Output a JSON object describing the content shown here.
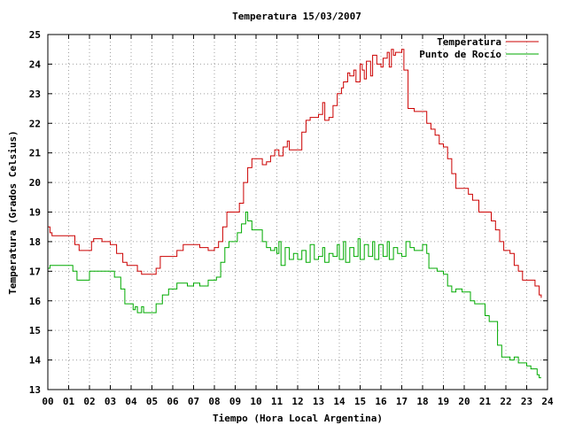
{
  "chart_data": {
    "type": "line",
    "title": "Temperatura 15/03/2007",
    "xlabel": "Tiempo (Hora Local Argentina)",
    "ylabel": "Temperatura (Grados Celsius)",
    "xlim": [
      0,
      24
    ],
    "ylim": [
      13,
      25
    ],
    "x_ticks": [
      "00",
      "01",
      "02",
      "03",
      "04",
      "05",
      "06",
      "07",
      "08",
      "09",
      "10",
      "11",
      "12",
      "13",
      "14",
      "15",
      "16",
      "17",
      "18",
      "19",
      "20",
      "21",
      "22",
      "23",
      "24"
    ],
    "y_ticks": [
      "13",
      "14",
      "15",
      "16",
      "17",
      "18",
      "19",
      "20",
      "21",
      "22",
      "23",
      "24",
      "25"
    ],
    "grid": true,
    "legend_position": "top-right",
    "series": [
      {
        "name": "Temperatura",
        "color": "#cc0000",
        "points": [
          [
            0.0,
            18.5
          ],
          [
            0.1,
            18.3
          ],
          [
            0.2,
            18.2
          ],
          [
            1.2,
            18.2
          ],
          [
            1.3,
            17.9
          ],
          [
            1.5,
            17.7
          ],
          [
            2.0,
            17.7
          ],
          [
            2.1,
            18.0
          ],
          [
            2.2,
            18.1
          ],
          [
            2.6,
            18.0
          ],
          [
            3.0,
            17.9
          ],
          [
            3.3,
            17.6
          ],
          [
            3.6,
            17.3
          ],
          [
            3.8,
            17.2
          ],
          [
            4.2,
            17.2
          ],
          [
            4.3,
            17.0
          ],
          [
            4.5,
            16.9
          ],
          [
            5.0,
            16.9
          ],
          [
            5.2,
            17.1
          ],
          [
            5.4,
            17.5
          ],
          [
            6.0,
            17.5
          ],
          [
            6.2,
            17.7
          ],
          [
            6.5,
            17.9
          ],
          [
            7.1,
            17.9
          ],
          [
            7.3,
            17.8
          ],
          [
            7.6,
            17.8
          ],
          [
            7.7,
            17.7
          ],
          [
            8.0,
            17.8
          ],
          [
            8.2,
            18.0
          ],
          [
            8.4,
            18.5
          ],
          [
            8.6,
            19.0
          ],
          [
            9.0,
            19.0
          ],
          [
            9.2,
            19.3
          ],
          [
            9.4,
            20.0
          ],
          [
            9.6,
            20.5
          ],
          [
            9.8,
            20.8
          ],
          [
            10.2,
            20.8
          ],
          [
            10.3,
            20.6
          ],
          [
            10.5,
            20.7
          ],
          [
            10.7,
            20.9
          ],
          [
            10.9,
            21.1
          ],
          [
            11.1,
            20.9
          ],
          [
            11.3,
            21.2
          ],
          [
            11.5,
            21.4
          ],
          [
            11.6,
            21.1
          ],
          [
            12.0,
            21.1
          ],
          [
            12.2,
            21.7
          ],
          [
            12.4,
            22.1
          ],
          [
            12.6,
            22.2
          ],
          [
            13.0,
            22.3
          ],
          [
            13.2,
            22.7
          ],
          [
            13.3,
            22.1
          ],
          [
            13.5,
            22.2
          ],
          [
            13.7,
            22.6
          ],
          [
            13.9,
            23.0
          ],
          [
            14.1,
            23.2
          ],
          [
            14.2,
            23.4
          ],
          [
            14.4,
            23.7
          ],
          [
            14.5,
            23.6
          ],
          [
            14.7,
            23.8
          ],
          [
            14.8,
            23.4
          ],
          [
            15.0,
            24.0
          ],
          [
            15.1,
            23.8
          ],
          [
            15.2,
            23.5
          ],
          [
            15.3,
            24.1
          ],
          [
            15.5,
            23.6
          ],
          [
            15.6,
            24.3
          ],
          [
            15.8,
            24.0
          ],
          [
            16.0,
            23.9
          ],
          [
            16.1,
            24.2
          ],
          [
            16.3,
            24.4
          ],
          [
            16.4,
            23.9
          ],
          [
            16.5,
            24.5
          ],
          [
            16.6,
            24.3
          ],
          [
            16.7,
            24.4
          ],
          [
            17.0,
            24.5
          ],
          [
            17.1,
            23.8
          ],
          [
            17.3,
            22.5
          ],
          [
            17.6,
            22.4
          ],
          [
            18.0,
            22.4
          ],
          [
            18.2,
            22.0
          ],
          [
            18.4,
            21.8
          ],
          [
            18.6,
            21.6
          ],
          [
            18.8,
            21.3
          ],
          [
            19.0,
            21.2
          ],
          [
            19.2,
            20.8
          ],
          [
            19.4,
            20.3
          ],
          [
            19.6,
            19.8
          ],
          [
            20.0,
            19.8
          ],
          [
            20.2,
            19.6
          ],
          [
            20.4,
            19.4
          ],
          [
            20.7,
            19.0
          ],
          [
            21.1,
            19.0
          ],
          [
            21.3,
            18.7
          ],
          [
            21.5,
            18.4
          ],
          [
            21.7,
            18.0
          ],
          [
            21.9,
            17.7
          ],
          [
            22.2,
            17.6
          ],
          [
            22.4,
            17.2
          ],
          [
            22.6,
            17.0
          ],
          [
            22.8,
            16.7
          ],
          [
            23.2,
            16.7
          ],
          [
            23.4,
            16.5
          ],
          [
            23.6,
            16.2
          ],
          [
            23.7,
            16.1
          ]
        ]
      },
      {
        "name": "Punto de Rocío",
        "color": "#00aa00",
        "points": [
          [
            0.0,
            17.1
          ],
          [
            0.1,
            17.2
          ],
          [
            1.0,
            17.2
          ],
          [
            1.2,
            17.0
          ],
          [
            1.4,
            16.7
          ],
          [
            1.9,
            16.7
          ],
          [
            2.0,
            17.0
          ],
          [
            3.0,
            17.0
          ],
          [
            3.2,
            16.8
          ],
          [
            3.5,
            16.4
          ],
          [
            3.7,
            15.9
          ],
          [
            4.0,
            15.9
          ],
          [
            4.1,
            15.7
          ],
          [
            4.2,
            15.8
          ],
          [
            4.3,
            15.6
          ],
          [
            4.5,
            15.8
          ],
          [
            4.6,
            15.6
          ],
          [
            5.0,
            15.6
          ],
          [
            5.2,
            15.9
          ],
          [
            5.5,
            16.2
          ],
          [
            5.8,
            16.4
          ],
          [
            6.0,
            16.4
          ],
          [
            6.2,
            16.6
          ],
          [
            6.5,
            16.6
          ],
          [
            6.7,
            16.5
          ],
          [
            7.0,
            16.6
          ],
          [
            7.3,
            16.5
          ],
          [
            7.5,
            16.5
          ],
          [
            7.7,
            16.7
          ],
          [
            8.1,
            16.8
          ],
          [
            8.3,
            17.3
          ],
          [
            8.5,
            17.8
          ],
          [
            8.7,
            18.0
          ],
          [
            9.0,
            18.0
          ],
          [
            9.1,
            18.3
          ],
          [
            9.3,
            18.6
          ],
          [
            9.5,
            19.0
          ],
          [
            9.6,
            18.7
          ],
          [
            9.8,
            18.4
          ],
          [
            10.1,
            18.4
          ],
          [
            10.3,
            18.0
          ],
          [
            10.5,
            17.8
          ],
          [
            10.7,
            17.7
          ],
          [
            10.9,
            17.8
          ],
          [
            11.0,
            17.6
          ],
          [
            11.1,
            18.0
          ],
          [
            11.2,
            17.2
          ],
          [
            11.4,
            17.8
          ],
          [
            11.6,
            17.4
          ],
          [
            11.8,
            17.6
          ],
          [
            12.0,
            17.4
          ],
          [
            12.2,
            17.7
          ],
          [
            12.4,
            17.3
          ],
          [
            12.6,
            17.9
          ],
          [
            12.8,
            17.4
          ],
          [
            13.0,
            17.5
          ],
          [
            13.2,
            17.8
          ],
          [
            13.3,
            17.3
          ],
          [
            13.5,
            17.6
          ],
          [
            13.7,
            17.5
          ],
          [
            13.9,
            17.9
          ],
          [
            14.0,
            17.4
          ],
          [
            14.2,
            18.0
          ],
          [
            14.3,
            17.3
          ],
          [
            14.5,
            17.8
          ],
          [
            14.7,
            17.5
          ],
          [
            14.9,
            18.1
          ],
          [
            15.0,
            17.4
          ],
          [
            15.2,
            17.9
          ],
          [
            15.4,
            17.5
          ],
          [
            15.6,
            18.0
          ],
          [
            15.7,
            17.4
          ],
          [
            15.9,
            17.9
          ],
          [
            16.1,
            17.5
          ],
          [
            16.3,
            18.0
          ],
          [
            16.4,
            17.4
          ],
          [
            16.6,
            17.8
          ],
          [
            16.8,
            17.6
          ],
          [
            17.0,
            17.5
          ],
          [
            17.2,
            18.0
          ],
          [
            17.4,
            17.8
          ],
          [
            17.6,
            17.7
          ],
          [
            17.9,
            17.7
          ],
          [
            18.0,
            17.9
          ],
          [
            18.2,
            17.6
          ],
          [
            18.3,
            17.1
          ],
          [
            18.7,
            17.0
          ],
          [
            19.0,
            16.9
          ],
          [
            19.2,
            16.5
          ],
          [
            19.4,
            16.3
          ],
          [
            19.6,
            16.4
          ],
          [
            19.9,
            16.3
          ],
          [
            20.2,
            16.3
          ],
          [
            20.3,
            16.0
          ],
          [
            20.5,
            15.9
          ],
          [
            20.8,
            15.9
          ],
          [
            21.0,
            15.5
          ],
          [
            21.2,
            15.3
          ],
          [
            21.4,
            15.3
          ],
          [
            21.6,
            14.5
          ],
          [
            21.8,
            14.1
          ],
          [
            22.2,
            14.0
          ],
          [
            22.4,
            14.1
          ],
          [
            22.6,
            13.9
          ],
          [
            23.0,
            13.8
          ],
          [
            23.2,
            13.7
          ],
          [
            23.5,
            13.5
          ],
          [
            23.6,
            13.4
          ],
          [
            23.7,
            13.4
          ]
        ]
      }
    ]
  }
}
